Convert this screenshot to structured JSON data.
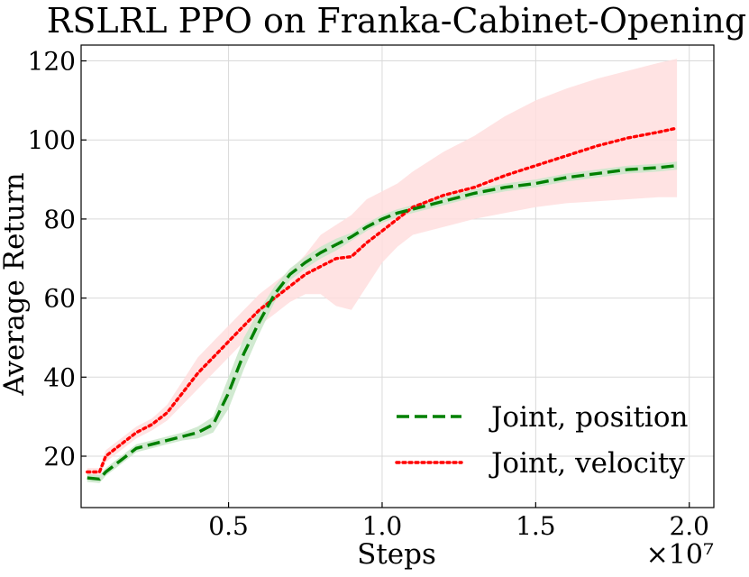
{
  "chart_data": {
    "type": "line",
    "title": "RSLRL PPO on Franka-Cabinet-Opening",
    "xlabel": "Steps",
    "ylabel": "Average Return",
    "x_scale_label": "×10⁷",
    "xlim": [
      0.02,
      2.08
    ],
    "ylim": [
      7,
      124
    ],
    "xticks": [
      0.5,
      1.0,
      1.5,
      2.0
    ],
    "xtick_labels": [
      "0.5",
      "1.0",
      "1.5",
      "2.0"
    ],
    "yticks": [
      20,
      40,
      60,
      80,
      100,
      120
    ],
    "ytick_labels": [
      "20",
      "40",
      "60",
      "80",
      "100",
      "120"
    ],
    "grid": true,
    "legend_position": "lower-right",
    "series": [
      {
        "name": "Joint, position",
        "color": "#008000",
        "band_color": "#c9e6c9",
        "line_style": "dashed",
        "x": [
          0.04,
          0.08,
          0.1,
          0.15,
          0.2,
          0.25,
          0.3,
          0.35,
          0.4,
          0.45,
          0.5,
          0.55,
          0.6,
          0.65,
          0.7,
          0.75,
          0.8,
          0.85,
          0.9,
          0.95,
          1.0,
          1.05,
          1.1,
          1.2,
          1.3,
          1.4,
          1.5,
          1.6,
          1.7,
          1.8,
          1.9,
          1.96
        ],
        "y": [
          14.5,
          14.2,
          16,
          19,
          22,
          23,
          24,
          25,
          26,
          28,
          36,
          46,
          54,
          61,
          66,
          69,
          71.5,
          73.5,
          75.5,
          78,
          80,
          81.5,
          82.5,
          84.5,
          86.5,
          88,
          89,
          90.5,
          91.5,
          92.5,
          93,
          93.5
        ],
        "lower": [
          13.5,
          13.2,
          15,
          18,
          21,
          22,
          23,
          24,
          24.5,
          26,
          32,
          42,
          51,
          59,
          64.5,
          67.5,
          70,
          72,
          74.5,
          77,
          79,
          80.5,
          81.5,
          83.5,
          85.5,
          87,
          88,
          89.5,
          90.5,
          91.5,
          92,
          92.5
        ],
        "upper": [
          15.5,
          15.2,
          17,
          20,
          23,
          24,
          25,
          26,
          27.5,
          30,
          40,
          50,
          57,
          63,
          67.5,
          70.5,
          73,
          75,
          76.5,
          79,
          81,
          82.5,
          83.5,
          85.5,
          87.5,
          89,
          90,
          91.5,
          92.5,
          93.5,
          94,
          94.5
        ]
      },
      {
        "name": "Joint, velocity",
        "color": "#ff0000",
        "band_color": "#ffdede",
        "line_style": "dotted",
        "x": [
          0.04,
          0.08,
          0.1,
          0.15,
          0.2,
          0.25,
          0.3,
          0.35,
          0.4,
          0.45,
          0.5,
          0.55,
          0.6,
          0.65,
          0.7,
          0.75,
          0.8,
          0.85,
          0.9,
          0.95,
          1.0,
          1.05,
          1.1,
          1.2,
          1.3,
          1.4,
          1.5,
          1.6,
          1.7,
          1.8,
          1.9,
          1.96
        ],
        "y": [
          16,
          16,
          20,
          23,
          26,
          28,
          31,
          36,
          41,
          45,
          49,
          53,
          57,
          60,
          63,
          66,
          68,
          70,
          70.5,
          74,
          77,
          80,
          83,
          86,
          88,
          91,
          93.5,
          96,
          98.5,
          100.5,
          102,
          103
        ],
        "lower": [
          15,
          15,
          18.5,
          21.5,
          24.5,
          26.5,
          29,
          33,
          37,
          41,
          45,
          49,
          53,
          56,
          59,
          61,
          61,
          58,
          57,
          63,
          69,
          73,
          76,
          78,
          80,
          81.5,
          83,
          84,
          84.5,
          85,
          85.5,
          85.5
        ],
        "upper": [
          17,
          17,
          21.5,
          24.5,
          27.5,
          29.5,
          33,
          39,
          45,
          49,
          53,
          57,
          61,
          64,
          67,
          71,
          76,
          78.5,
          81,
          85,
          87,
          89,
          92,
          97,
          101,
          106,
          110,
          113,
          115.5,
          117.5,
          119.5,
          120.5
        ]
      }
    ]
  }
}
